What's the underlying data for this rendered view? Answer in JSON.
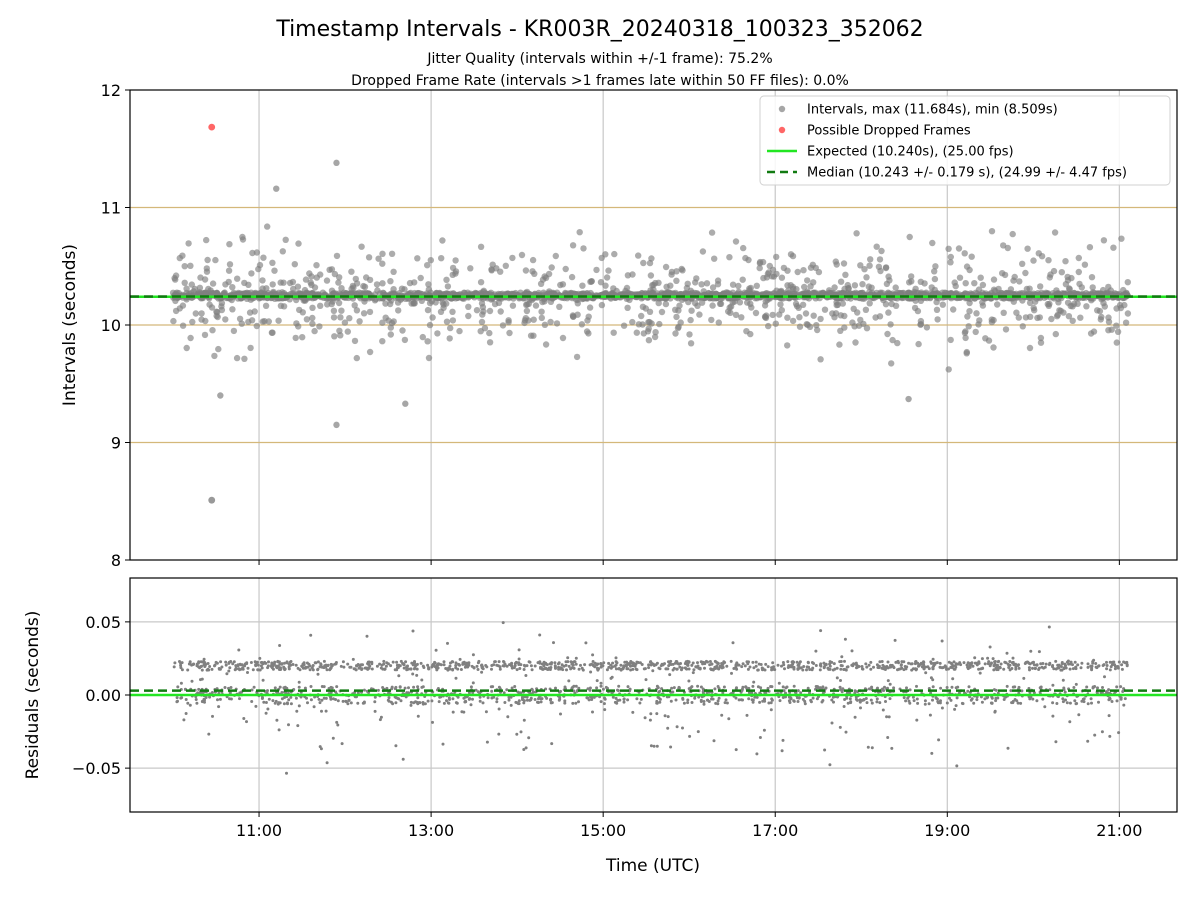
{
  "chart_data": {
    "type": "scatter",
    "title": "Timestamp Intervals - KR003R_20240318_100323_352062",
    "subtitles": [
      "Jitter Quality (intervals within +/-1 frame): 75.2%",
      "Dropped Frame Rate (intervals >1 frames late within 50 FF files): 0.0%"
    ],
    "xlabel": "Time (UTC)",
    "x_range_hours": [
      9.5,
      21.67
    ],
    "x_ticks": [
      {
        "value": 11,
        "label": "11:00"
      },
      {
        "value": 13,
        "label": "13:00"
      },
      {
        "value": 15,
        "label": "15:00"
      },
      {
        "value": 17,
        "label": "17:00"
      },
      {
        "value": 19,
        "label": "19:00"
      },
      {
        "value": 21,
        "label": "21:00"
      }
    ],
    "data_x_range_hours": [
      10.0,
      21.1
    ],
    "top_panel": {
      "ylabel": "Intervals (seconds)",
      "ylim": [
        8,
        12
      ],
      "y_ticks": [
        {
          "value": 8,
          "label": "8"
        },
        {
          "value": 9,
          "label": "9"
        },
        {
          "value": 10,
          "label": "10"
        },
        {
          "value": 11,
          "label": "11"
        },
        {
          "value": 12,
          "label": "12"
        }
      ],
      "frame_lines": [
        9,
        10,
        11
      ],
      "expected": 10.24,
      "median": 10.243,
      "max_interval": 11.684,
      "min_interval": 8.509,
      "dropped_frames": [
        {
          "x": 10.45,
          "y": 11.684
        }
      ],
      "min_point": {
        "x": 10.45,
        "y": 8.509
      },
      "notable_points": [
        {
          "x": 11.9,
          "y": 11.38
        },
        {
          "x": 11.2,
          "y": 11.16
        },
        {
          "x": 11.9,
          "y": 9.15
        },
        {
          "x": 12.7,
          "y": 9.33
        },
        {
          "x": 10.55,
          "y": 9.4
        },
        {
          "x": 18.55,
          "y": 9.37
        }
      ],
      "legend": [
        {
          "marker": "dot-gray",
          "label": "Intervals, max (11.684s), min (8.509s)"
        },
        {
          "marker": "dot-red",
          "label": "Possible Dropped Frames"
        },
        {
          "marker": "line-green",
          "label": "Expected (10.240s), (25.00 fps)"
        },
        {
          "marker": "dash-darkgreen",
          "label": "Median (10.243 +/- 0.179 s), (24.99 +/- 4.47 fps)"
        }
      ]
    },
    "bottom_panel": {
      "ylabel": "Residuals (seconds)",
      "ylim": [
        -0.08,
        0.08
      ],
      "y_ticks": [
        {
          "value": -0.05,
          "label": "−0.05"
        },
        {
          "value": 0.0,
          "label": "0.00"
        },
        {
          "value": 0.05,
          "label": "0.05"
        }
      ],
      "expected_residual": 0.0,
      "median_residual": 0.003
    },
    "colors": {
      "points": "#808080",
      "dropped": "#ff6666",
      "expected": "#22e622",
      "median": "#117a11",
      "frame_lines": "#d4b87a",
      "grid": "#c8c8c8"
    }
  }
}
